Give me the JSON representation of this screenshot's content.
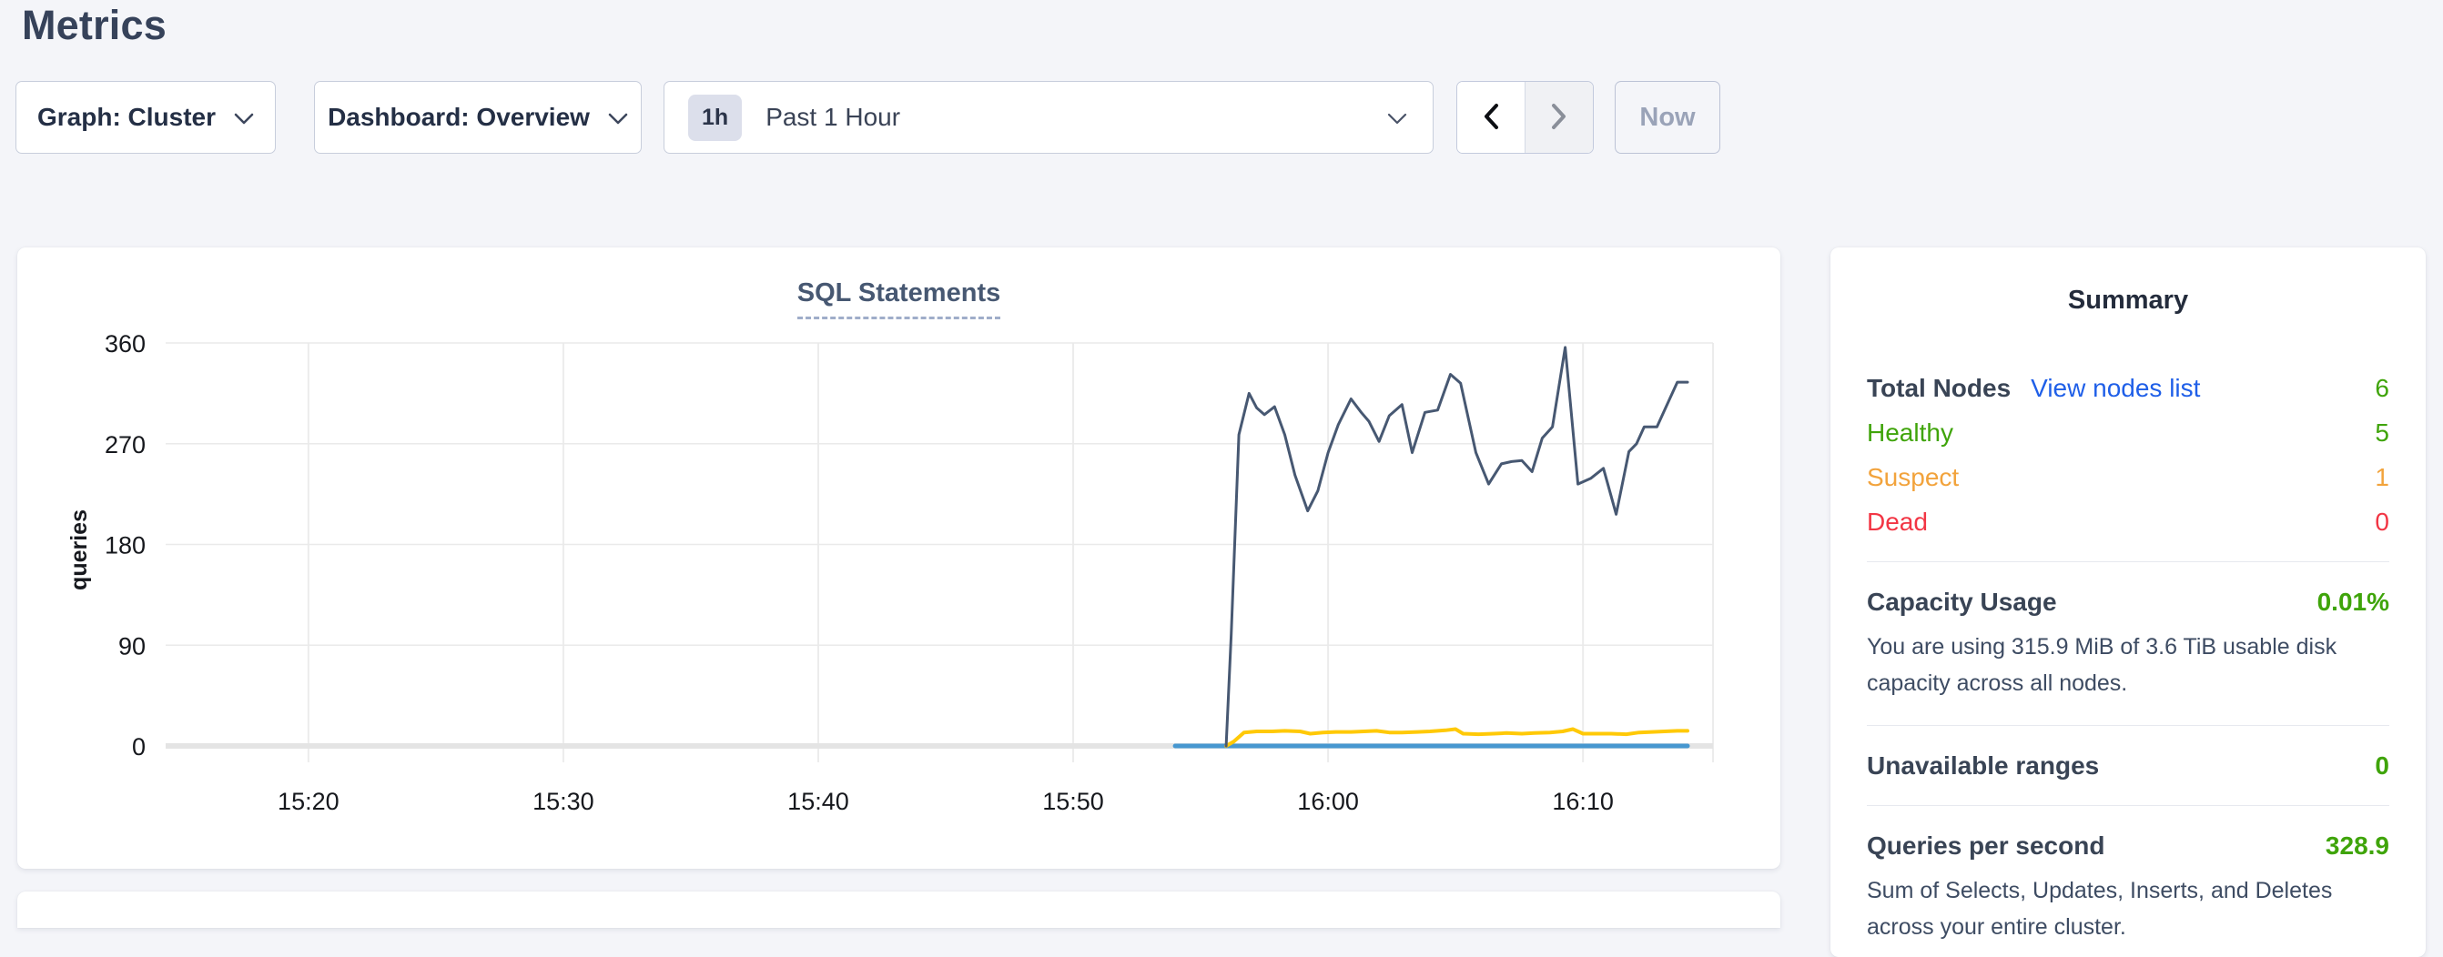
{
  "header": {
    "title": "Metrics"
  },
  "controls": {
    "graph_label": "Graph: Cluster",
    "dashboard_label": "Dashboard: Overview",
    "time_badge": "1h",
    "time_label": "Past 1 Hour",
    "now_label": "Now"
  },
  "summary": {
    "title": "Summary",
    "value_color": "#3fa40a",
    "nodes": {
      "total_label": "Total Nodes",
      "link": "View nodes list",
      "link_color": "#1f5fe8",
      "total_value": "6",
      "rows": [
        {
          "label": "Healthy",
          "value": "5",
          "color": "#3fa40a"
        },
        {
          "label": "Suspect",
          "value": "1",
          "color": "#f2a33c"
        },
        {
          "label": "Dead",
          "value": "0",
          "color": "#f23544"
        }
      ]
    },
    "sections": [
      {
        "label": "Capacity Usage",
        "value": "0.01%",
        "desc": "You are using 315.9 MiB of 3.6 TiB usable disk capacity across all nodes."
      },
      {
        "label": "Unavailable ranges",
        "value": "0",
        "desc": ""
      },
      {
        "label": "Queries per second",
        "value": "328.9",
        "desc": "Sum of Selects, Updates, Inserts, and Deletes across your entire cluster."
      }
    ]
  },
  "chart_data": {
    "type": "line",
    "title": "SQL Statements",
    "ylabel": "queries",
    "xlabel": "",
    "grid": true,
    "legend": "none",
    "ylim": [
      0,
      360
    ],
    "yticks": [
      0,
      90,
      180,
      270,
      360
    ],
    "x_unit": "minutes after 15:00",
    "x_domain": [
      14.4,
      75.1
    ],
    "xticks": [
      {
        "minute": 20,
        "label": "15:20"
      },
      {
        "minute": 30,
        "label": "15:30"
      },
      {
        "minute": 40,
        "label": "15:40"
      },
      {
        "minute": 50,
        "label": "15:50"
      },
      {
        "minute": 60,
        "label": "16:00"
      },
      {
        "minute": 70,
        "label": "16:10"
      }
    ],
    "series": [
      {
        "name": "blue-line",
        "color": "#4697d0",
        "width": 5,
        "points": [
          [
            54.0,
            0
          ],
          [
            74.1,
            0
          ]
        ]
      },
      {
        "name": "yellow-line",
        "color": "#ffc907",
        "width": 4,
        "points": [
          [
            56.0,
            0
          ],
          [
            56.3,
            4
          ],
          [
            56.7,
            12
          ],
          [
            57.2,
            13
          ],
          [
            57.8,
            13
          ],
          [
            58.3,
            13.5
          ],
          [
            58.9,
            13
          ],
          [
            59.3,
            11
          ],
          [
            59.8,
            12
          ],
          [
            60.3,
            12.5
          ],
          [
            60.9,
            12.5
          ],
          [
            61.4,
            13
          ],
          [
            61.9,
            13.5
          ],
          [
            62.4,
            12
          ],
          [
            62.9,
            12
          ],
          [
            63.5,
            12.5
          ],
          [
            64.0,
            13
          ],
          [
            64.6,
            14
          ],
          [
            65.0,
            15
          ],
          [
            65.3,
            11
          ],
          [
            65.9,
            10.5
          ],
          [
            66.5,
            11
          ],
          [
            67.0,
            11.5
          ],
          [
            67.6,
            11
          ],
          [
            68.1,
            11.5
          ],
          [
            68.7,
            12
          ],
          [
            69.2,
            13
          ],
          [
            69.6,
            15
          ],
          [
            70.0,
            11
          ],
          [
            70.6,
            11
          ],
          [
            71.1,
            11
          ],
          [
            71.7,
            10.5
          ],
          [
            72.2,
            12
          ],
          [
            72.7,
            12.5
          ],
          [
            73.2,
            13
          ],
          [
            73.7,
            13.5
          ],
          [
            74.1,
            13.5
          ]
        ]
      },
      {
        "name": "navy-line",
        "color": "#475872",
        "width": 3,
        "points": [
          [
            56.0,
            0
          ],
          [
            56.2,
            100
          ],
          [
            56.5,
            278
          ],
          [
            56.9,
            315
          ],
          [
            57.2,
            302
          ],
          [
            57.5,
            296
          ],
          [
            57.9,
            303
          ],
          [
            58.3,
            278
          ],
          [
            58.7,
            242
          ],
          [
            59.2,
            210
          ],
          [
            59.6,
            228
          ],
          [
            60.0,
            262
          ],
          [
            60.4,
            287
          ],
          [
            60.9,
            310
          ],
          [
            61.3,
            298
          ],
          [
            61.6,
            290
          ],
          [
            62.0,
            272
          ],
          [
            62.4,
            295
          ],
          [
            62.9,
            305
          ],
          [
            63.3,
            262
          ],
          [
            63.8,
            298
          ],
          [
            64.3,
            300
          ],
          [
            64.8,
            332
          ],
          [
            65.2,
            324
          ],
          [
            65.8,
            262
          ],
          [
            66.3,
            234
          ],
          [
            66.8,
            252
          ],
          [
            67.2,
            254
          ],
          [
            67.6,
            255
          ],
          [
            68.0,
            245
          ],
          [
            68.4,
            275
          ],
          [
            68.8,
            285
          ],
          [
            69.3,
            356
          ],
          [
            69.8,
            234
          ],
          [
            70.3,
            239
          ],
          [
            70.8,
            248
          ],
          [
            71.3,
            207
          ],
          [
            71.8,
            263
          ],
          [
            72.1,
            270
          ],
          [
            72.4,
            285
          ],
          [
            72.9,
            285
          ],
          [
            73.4,
            310
          ],
          [
            73.7,
            325
          ],
          [
            74.1,
            325
          ]
        ]
      }
    ]
  }
}
